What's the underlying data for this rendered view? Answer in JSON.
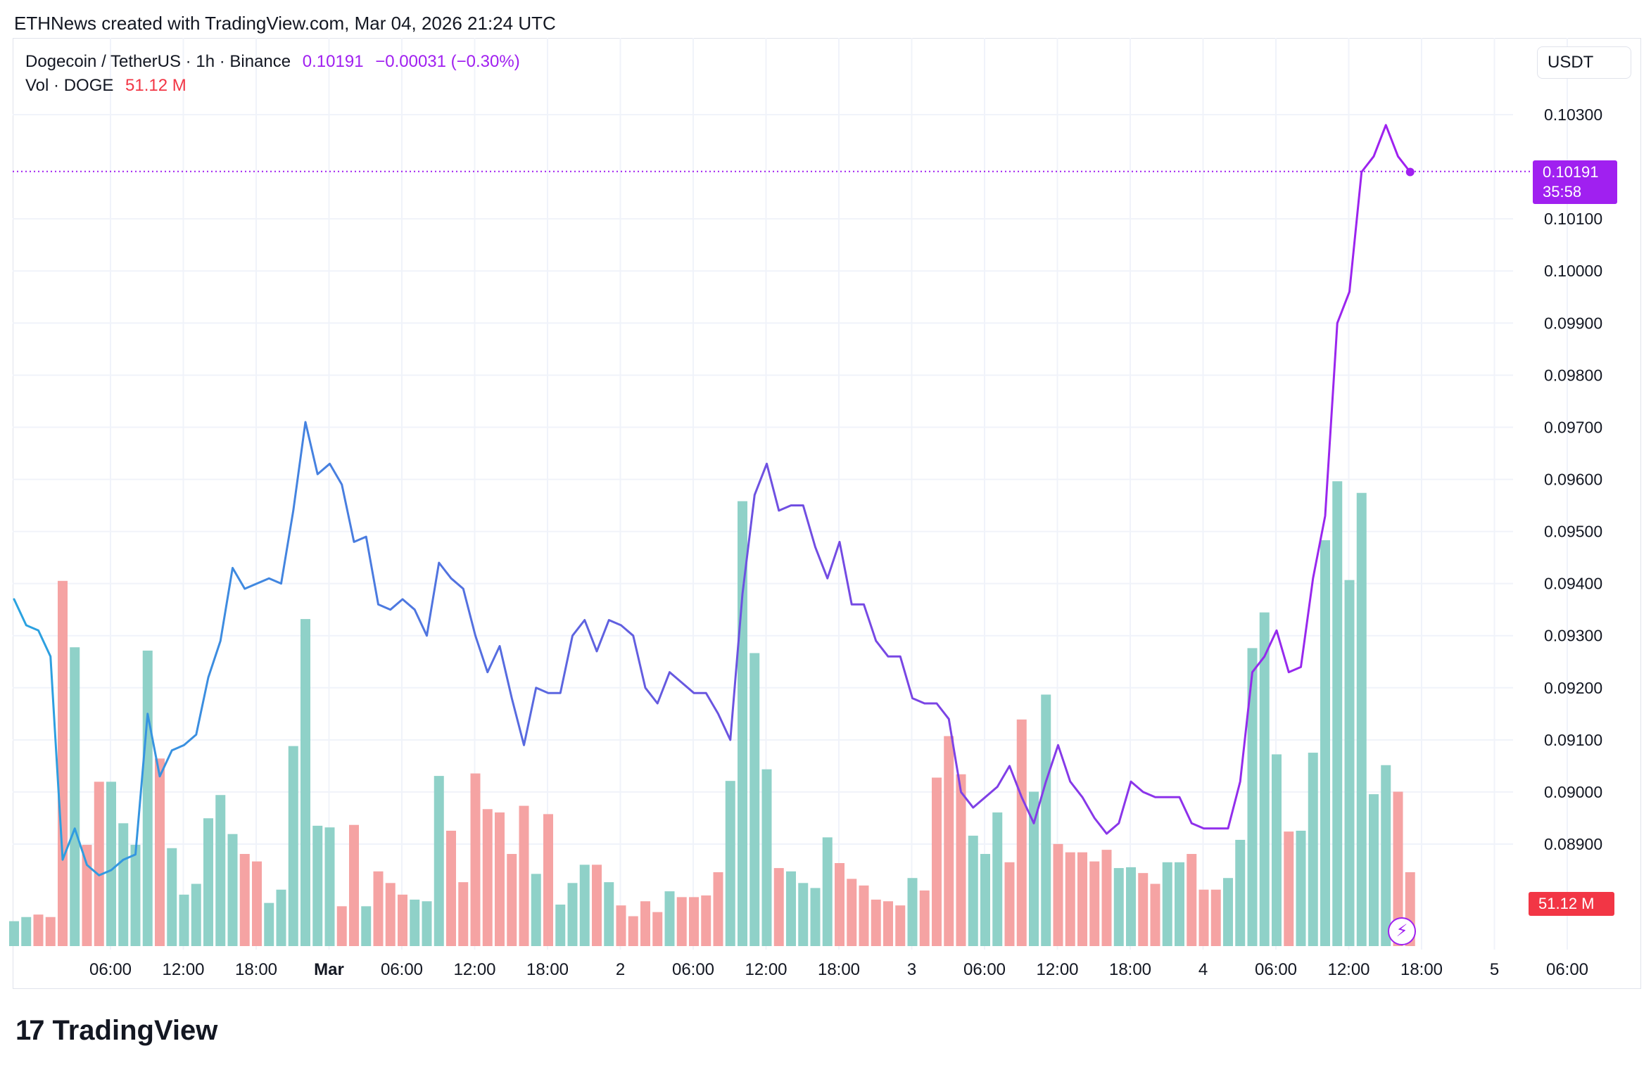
{
  "caption": "ETHNews created with TradingView.com, Mar 04, 2026 21:24 UTC",
  "legend": {
    "symbol": "Dogecoin / TetherUS · 1h · Binance",
    "last": "0.10191",
    "change": "−0.00031 (−0.30%)",
    "vol_label": "Vol · DOGE",
    "vol_value": "51.12 M"
  },
  "currency": "USDT",
  "price_tag": {
    "price": "0.10191",
    "countdown": "35:58"
  },
  "vol_tag": "51.12 M",
  "footer": {
    "brand": "TradingView"
  },
  "colors": {
    "line_start": "#2aa3e0",
    "line_mid": "#6a55e0",
    "line_end": "#a020f0",
    "vol_up": "#8fd1c8",
    "vol_down": "#f5a3a3",
    "price_line": "#a020f0"
  },
  "chart_data": {
    "type": "line",
    "interval": "1h",
    "ylim": [
      0.0881,
      0.1039
    ],
    "yticks": [
      "0.10300",
      "0.10100",
      "0.10000",
      "0.09900",
      "0.09800",
      "0.09700",
      "0.09600",
      "0.09500",
      "0.09400",
      "0.09300",
      "0.09200",
      "0.09100",
      "0.09000",
      "0.08900"
    ],
    "xticks": [
      {
        "label": "06:00",
        "bar": 4
      },
      {
        "label": "12:00",
        "bar": 10
      },
      {
        "label": "18:00",
        "bar": 16
      },
      {
        "label": "Mar",
        "bar": 22
      },
      {
        "label": "06:00",
        "bar": 28
      },
      {
        "label": "12:00",
        "bar": 34
      },
      {
        "label": "18:00",
        "bar": 40
      },
      {
        "label": "2",
        "bar": 46
      },
      {
        "label": "06:00",
        "bar": 52
      },
      {
        "label": "12:00",
        "bar": 58
      },
      {
        "label": "18:00",
        "bar": 64
      },
      {
        "label": "3",
        "bar": 70
      },
      {
        "label": "06:00",
        "bar": 76
      },
      {
        "label": "12:00",
        "bar": 82
      },
      {
        "label": "18:00",
        "bar": 88
      },
      {
        "label": "4",
        "bar": 94
      },
      {
        "label": "06:00",
        "bar": 100
      },
      {
        "label": "12:00",
        "bar": 106
      },
      {
        "label": "18:00",
        "bar": 112
      },
      {
        "label": "5",
        "bar": 118
      },
      {
        "label": "06:00",
        "bar": 124
      }
    ],
    "close": [
      0.0937,
      0.0932,
      0.0931,
      0.0926,
      0.0887,
      0.0893,
      0.0886,
      0.0884,
      0.0885,
      0.0887,
      0.0888,
      0.0915,
      0.0903,
      0.0908,
      0.0909,
      0.0911,
      0.0922,
      0.0929,
      0.0943,
      0.0939,
      0.094,
      0.0941,
      0.094,
      0.0954,
      0.0971,
      0.0961,
      0.0963,
      0.0959,
      0.0948,
      0.0949,
      0.0936,
      0.0935,
      0.0937,
      0.0935,
      0.093,
      0.0944,
      0.0941,
      0.0939,
      0.093,
      0.0923,
      0.0928,
      0.0918,
      0.0909,
      0.092,
      0.0919,
      0.0919,
      0.093,
      0.0933,
      0.0927,
      0.0933,
      0.0932,
      0.093,
      0.092,
      0.0917,
      0.0923,
      0.0921,
      0.0919,
      0.0919,
      0.0915,
      0.091,
      0.0938,
      0.0957,
      0.0963,
      0.0954,
      0.0955,
      0.0955,
      0.0947,
      0.0941,
      0.0948,
      0.0936,
      0.0936,
      0.0929,
      0.0926,
      0.0926,
      0.0918,
      0.0917,
      0.0917,
      0.0914,
      0.09,
      0.0897,
      0.0899,
      0.0901,
      0.0905,
      0.0899,
      0.0894,
      0.0902,
      0.0909,
      0.0902,
      0.0899,
      0.0895,
      0.0892,
      0.0894,
      0.0902,
      0.09,
      0.0899,
      0.0899,
      0.0899,
      0.0894,
      0.0893,
      0.0893,
      0.0893,
      0.0902,
      0.0923,
      0.0926,
      0.0931,
      0.0923,
      0.0924,
      0.0941,
      0.0953,
      0.099,
      0.0996,
      0.1019,
      0.1022,
      0.1028,
      0.1022,
      0.1019
    ],
    "volume": [
      3,
      3.5,
      3.8,
      3.5,
      44,
      36,
      12.2,
      19.8,
      19.8,
      14.8,
      12.2,
      35.6,
      22.6,
      11.8,
      6.2,
      7.5,
      15.4,
      18.2,
      13.5,
      11.1,
      10.2,
      5.2,
      6.8,
      24.1,
      39.4,
      14.5,
      14.3,
      4.8,
      14.6,
      4.8,
      9,
      7.6,
      6.2,
      5.6,
      5.4,
      20.5,
      13.9,
      7.7,
      20.8,
      16.5,
      16.1,
      11.1,
      16.9,
      8.7,
      15.9,
      5,
      7.6,
      9.8,
      9.8,
      7.7,
      4.9,
      3.6,
      5.4,
      4.1,
      6.6,
      5.9,
      5.9,
      6.1,
      8.9,
      19.9,
      53.6,
      35.3,
      21.3,
      9.4,
      9,
      7.6,
      7,
      13.1,
      10,
      8.1,
      7.3,
      5.6,
      5.4,
      4.9,
      8.2,
      6.7,
      20.3,
      25.3,
      20.7,
      13.3,
      11.1,
      16.1,
      10.1,
      27.3,
      18.6,
      30.3,
      12.3,
      11.3,
      11.3,
      10.2,
      11.6,
      9.4,
      9.5,
      8.8,
      7.5,
      10.1,
      10.1,
      11.1,
      6.8,
      6.8,
      8.2,
      12.8,
      35.9,
      40.2,
      23.1,
      13.8,
      13.9,
      23.3,
      48.9,
      56,
      44.1,
      54.6,
      18.3,
      21.8,
      18.6,
      8.9
    ],
    "volume_up": [
      true,
      true,
      false,
      false,
      false,
      true,
      false,
      false,
      true,
      true,
      true,
      true,
      false,
      true,
      true,
      true,
      true,
      true,
      true,
      false,
      false,
      true,
      true,
      true,
      true,
      true,
      true,
      false,
      false,
      true,
      false,
      false,
      false,
      true,
      true,
      true,
      false,
      false,
      false,
      false,
      false,
      false,
      false,
      true,
      false,
      true,
      true,
      true,
      false,
      true,
      false,
      false,
      false,
      false,
      true,
      false,
      false,
      false,
      false,
      true,
      true,
      true,
      true,
      false,
      true,
      true,
      true,
      true,
      false,
      false,
      false,
      false,
      false,
      false,
      true,
      false,
      false,
      false,
      false,
      true,
      true,
      true,
      false,
      false,
      true,
      true,
      false,
      false,
      false,
      false,
      false,
      true,
      true,
      false,
      false,
      true,
      true,
      false,
      false,
      false,
      true,
      true,
      true,
      true,
      true,
      false,
      true,
      true,
      true,
      true,
      true,
      true,
      true,
      true,
      false,
      false
    ],
    "current_price": 0.10191
  }
}
